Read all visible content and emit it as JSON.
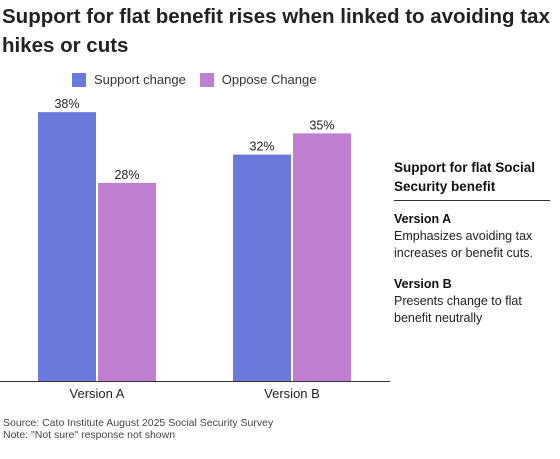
{
  "title": "Support for flat benefit rises when linked to avoiding tax hikes or cuts",
  "legend": [
    {
      "label": "Support change",
      "color": "#6b78dc"
    },
    {
      "label": "Oppose Change",
      "color": "#c07ed0"
    }
  ],
  "chart_data": {
    "type": "bar",
    "categories": [
      "Version A",
      "Version B"
    ],
    "series": [
      {
        "name": "Support change",
        "color": "#6b78dc",
        "values": [
          38,
          32
        ],
        "labels": [
          "38%",
          "32%"
        ]
      },
      {
        "name": "Oppose Change",
        "color": "#c07ed0",
        "values": [
          28,
          35
        ],
        "labels": [
          "28%",
          "35%"
        ]
      }
    ],
    "ylim": [
      0,
      40
    ],
    "grid": false,
    "legend_position": "top-left"
  },
  "side_panel": {
    "heading": "Support for flat Social Security benefit",
    "notes": [
      {
        "title": "Version A",
        "body": "Emphasizes avoiding tax increases or benefit cuts."
      },
      {
        "title": "Version B",
        "body": "Presents change to flat benefit neutrally"
      }
    ]
  },
  "footer": {
    "source": "Source: Cato Institute August 2025 Social Security Survey",
    "note": "Note: \"Not sure\" response not shown"
  }
}
